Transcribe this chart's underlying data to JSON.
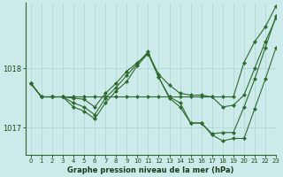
{
  "bg_color": "#cceaea",
  "line_color": "#2d6a2d",
  "xlabel": "Graphe pression niveau de la mer (hPa)",
  "ylim": [
    1016.55,
    1019.1
  ],
  "xlim": [
    -0.5,
    23
  ],
  "yticks": [
    1017,
    1018
  ],
  "xticks": [
    0,
    1,
    2,
    3,
    4,
    5,
    6,
    7,
    8,
    9,
    10,
    11,
    12,
    13,
    14,
    15,
    16,
    17,
    18,
    19,
    20,
    21,
    22,
    23
  ],
  "series": [
    [
      1017.75,
      1017.52,
      1017.52,
      1017.52,
      1017.52,
      1017.52,
      1017.52,
      1017.52,
      1017.52,
      1017.52,
      1017.52,
      1017.52,
      1017.52,
      1017.52,
      1017.52,
      1017.52,
      1017.52,
      1017.52,
      1017.52,
      1017.52,
      1018.1,
      1018.45,
      1018.7,
      1019.05
    ],
    [
      1017.75,
      1017.52,
      1017.52,
      1017.52,
      1017.5,
      1017.48,
      1017.35,
      1017.58,
      1017.75,
      1017.95,
      1018.1,
      1018.25,
      1017.9,
      1017.72,
      1017.58,
      1017.55,
      1017.55,
      1017.52,
      1017.35,
      1017.38,
      1017.55,
      1018.0,
      1018.45,
      1018.85
    ],
    [
      1017.75,
      1017.52,
      1017.52,
      1017.52,
      1017.42,
      1017.35,
      1017.22,
      1017.5,
      1017.68,
      1017.88,
      1018.08,
      1018.28,
      1017.85,
      1017.52,
      1017.42,
      1017.08,
      1017.08,
      1016.9,
      1016.92,
      1016.92,
      1017.35,
      1017.82,
      1018.35,
      1018.88
    ],
    [
      1017.75,
      1017.52,
      1017.52,
      1017.52,
      1017.35,
      1017.28,
      1017.15,
      1017.42,
      1017.62,
      1017.78,
      1018.05,
      1018.25,
      1017.85,
      1017.5,
      1017.35,
      1017.08,
      1017.08,
      1016.88,
      1016.78,
      1016.82,
      1016.82,
      1017.32,
      1017.82,
      1018.35
    ]
  ]
}
